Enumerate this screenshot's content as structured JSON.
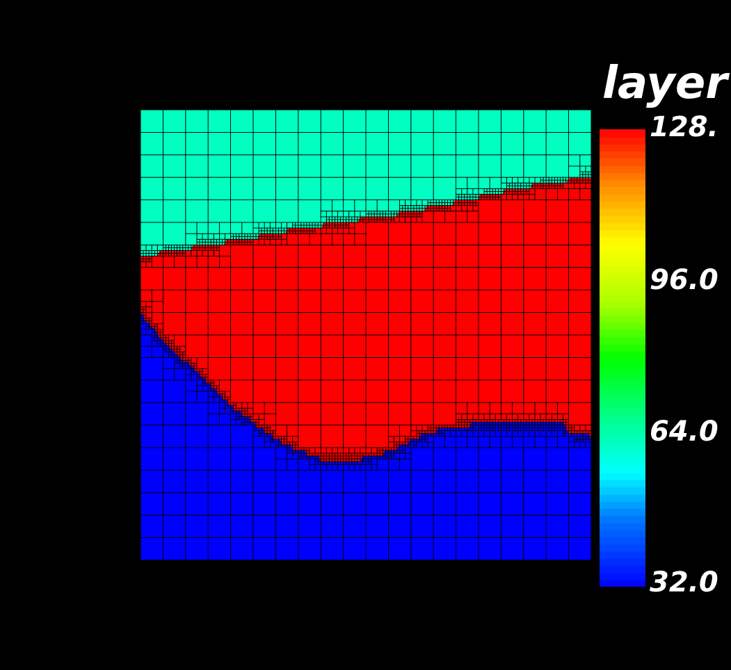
{
  "legend": {
    "title": "layer",
    "ticks": [
      "128.",
      "96.0",
      "64.0",
      "32.0"
    ],
    "min": 32.0,
    "max": 128.0
  },
  "colors": {
    "background": "#000000",
    "top_layer": "#00ffc0",
    "middle_layer": "#ff0000",
    "bottom_layer": "#0000ff",
    "mesh_lines": "#000000"
  },
  "chart_data": {
    "type": "heatmap",
    "description_values": {
      "top_region_value": 64.0,
      "middle_region_value": 128.0,
      "bottom_region_value": 32.0
    },
    "colorscale": "rainbow",
    "zlim": [
      32.0,
      128.0
    ],
    "grid": true,
    "legend_position": "right"
  }
}
